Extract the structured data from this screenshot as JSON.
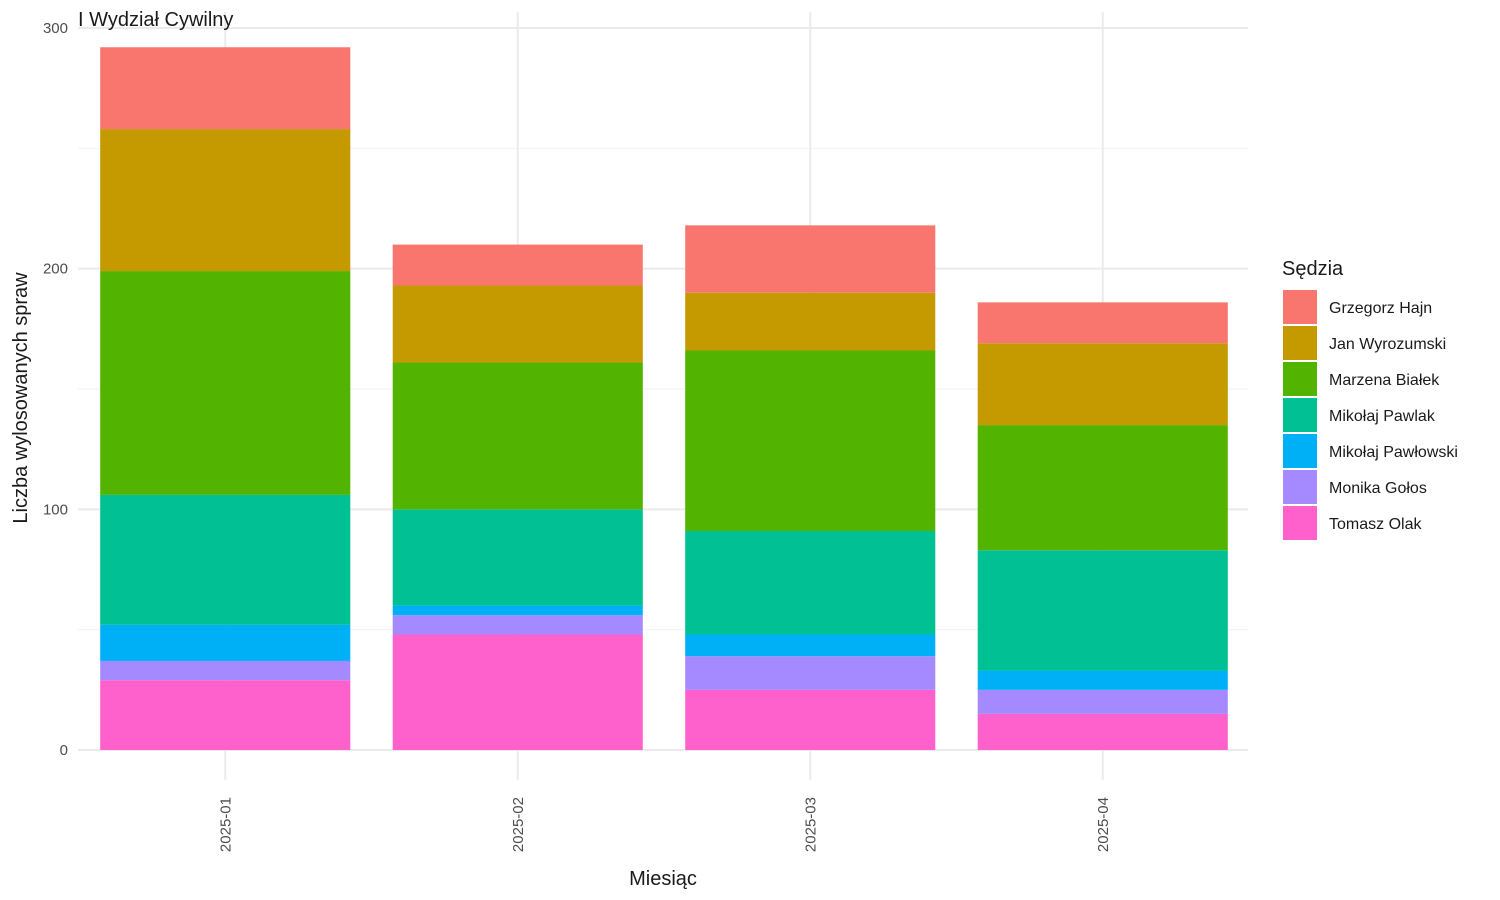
{
  "chart_data": {
    "type": "bar",
    "stacked": true,
    "title": "I Wydział Cywilny",
    "xlabel": "Miesiąc",
    "ylabel": "Liczba wylosowanych spraw",
    "ylim": [
      0,
      300
    ],
    "yticks": [
      0,
      100,
      200,
      300
    ],
    "grid": true,
    "legend_title": "Sędzia",
    "legend_position": "right",
    "categories": [
      "2025-01",
      "2025-02",
      "2025-03",
      "2025-04"
    ],
    "series": [
      {
        "name": "Tomasz Olak",
        "color": "#FF61CC",
        "values": [
          29,
          48,
          25,
          15
        ]
      },
      {
        "name": "Monika Gołos",
        "color": "#A58AFF",
        "values": [
          8,
          8,
          14,
          10
        ]
      },
      {
        "name": "Mikołaj Pawłowski",
        "color": "#00B0F6",
        "values": [
          15,
          4,
          9,
          8
        ]
      },
      {
        "name": "Mikołaj Pawlak",
        "color": "#00C094",
        "values": [
          54,
          40,
          43,
          50
        ]
      },
      {
        "name": "Marzena Białek",
        "color": "#53B400",
        "values": [
          93,
          61,
          75,
          52
        ]
      },
      {
        "name": "Jan Wyrozumski",
        "color": "#C49A00",
        "values": [
          59,
          32,
          24,
          34
        ]
      },
      {
        "name": "Grzegorz Hajn",
        "color": "#F8766D",
        "values": [
          34,
          17,
          28,
          17
        ]
      }
    ],
    "legend_order": [
      "Grzegorz Hajn",
      "Jan Wyrozumski",
      "Marzena Białek",
      "Mikołaj Pawlak",
      "Mikołaj Pawłowski",
      "Monika Gołos",
      "Tomasz Olak"
    ]
  }
}
